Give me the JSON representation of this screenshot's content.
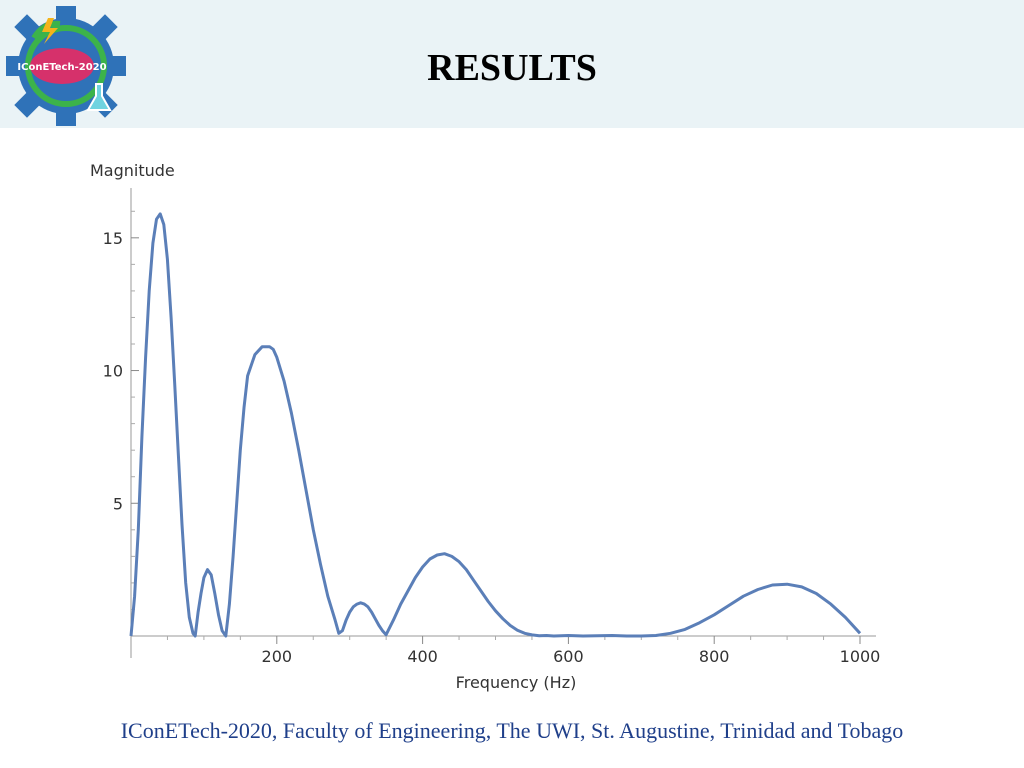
{
  "slide": {
    "title": "RESULTS",
    "footer": "IConETech-2020, Faculty of Engineering, The UWI, St. Augustine, Trinidad and Tobago",
    "logo_text": "IConETech-2020",
    "logo_icon": "gear-flask-logo"
  },
  "colors": {
    "header_bg": "#eaf3f6",
    "line": "#5b7fb8",
    "footer_text": "#1f3f8a"
  },
  "chart_data": {
    "type": "line",
    "title": "",
    "xlabel": "Frequency (Hz)",
    "ylabel": "Magnitude",
    "xlim": [
      0,
      1000
    ],
    "ylim": [
      0,
      16.5
    ],
    "xticks": [
      200,
      400,
      600,
      800,
      1000
    ],
    "yticks": [
      5,
      10,
      15
    ],
    "grid": false,
    "series": [
      {
        "x": [
          0,
          5,
          10,
          15,
          20,
          25,
          30,
          35,
          40,
          45,
          50,
          55,
          60,
          65,
          70,
          75,
          80,
          85,
          88,
          92,
          96,
          100,
          105,
          110,
          115,
          120,
          125,
          130,
          135,
          140,
          145,
          150,
          155,
          160,
          170,
          180,
          190,
          195,
          200,
          210,
          220,
          230,
          240,
          250,
          260,
          270,
          280,
          285,
          290,
          295,
          300,
          305,
          310,
          315,
          320,
          325,
          330,
          335,
          340,
          345,
          350,
          360,
          370,
          380,
          390,
          400,
          410,
          420,
          430,
          440,
          450,
          460,
          470,
          480,
          490,
          500,
          510,
          520,
          530,
          540,
          550,
          560,
          570,
          580,
          600,
          620,
          640,
          660,
          680,
          700,
          720,
          740,
          760,
          780,
          800,
          820,
          840,
          860,
          880,
          900,
          920,
          940,
          960,
          980,
          1000
        ],
        "y": [
          0,
          1.5,
          4.0,
          7.5,
          10.5,
          13.0,
          14.8,
          15.7,
          15.9,
          15.5,
          14.2,
          12.0,
          9.5,
          6.8,
          4.2,
          2.0,
          0.7,
          0.1,
          0,
          0.9,
          1.6,
          2.2,
          2.5,
          2.3,
          1.6,
          0.8,
          0.2,
          0,
          1.2,
          3.0,
          5.0,
          7.0,
          8.6,
          9.8,
          10.6,
          10.9,
          10.9,
          10.8,
          10.5,
          9.6,
          8.4,
          7.0,
          5.5,
          4.0,
          2.7,
          1.5,
          0.6,
          0.1,
          0.2,
          0.6,
          0.9,
          1.1,
          1.2,
          1.25,
          1.2,
          1.1,
          0.9,
          0.65,
          0.4,
          0.2,
          0.05,
          0.6,
          1.2,
          1.7,
          2.2,
          2.6,
          2.9,
          3.05,
          3.1,
          3.0,
          2.8,
          2.5,
          2.1,
          1.7,
          1.3,
          0.95,
          0.65,
          0.4,
          0.22,
          0.1,
          0.04,
          0.01,
          0.02,
          0.0,
          0.02,
          0.0,
          0.01,
          0.02,
          0.0,
          0.0,
          0.02,
          0.1,
          0.25,
          0.5,
          0.8,
          1.15,
          1.5,
          1.75,
          1.92,
          1.95,
          1.85,
          1.6,
          1.2,
          0.7,
          0.1
        ]
      }
    ]
  }
}
